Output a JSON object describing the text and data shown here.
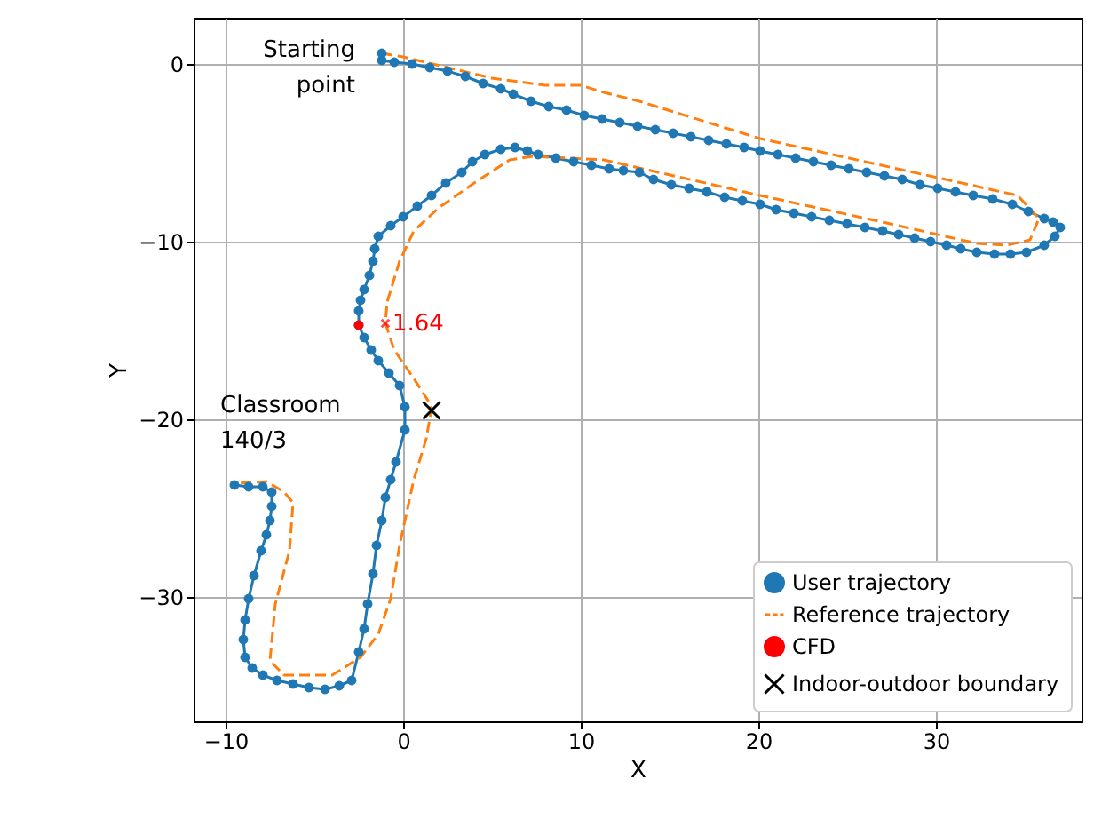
{
  "chart_data": {
    "type": "line",
    "xlabel": "X",
    "ylabel": "Y",
    "xlim": [
      -11.8,
      38.2
    ],
    "ylim": [
      -37,
      2.6
    ],
    "xticks": [
      -10,
      0,
      10,
      20,
      30
    ],
    "yticks": [
      -30,
      -20,
      -10,
      0
    ],
    "grid": true,
    "legend": "bottom right",
    "annotations": [
      "Starting point",
      "Classroom 140/3",
      {
        "text": "1.64",
        "x": -1,
        "y": -14.6
      }
    ],
    "series": [
      {
        "name": "User trajectory",
        "marker": "circle",
        "line_style": "solid",
        "color": "#1f77b4",
        "x": [
          -1.2,
          -1.2,
          -0.5,
          0.5,
          1.5,
          2.5,
          3.5,
          4.5,
          5.5,
          6.2,
          7.2,
          8.2,
          9.2,
          10.2,
          11.2,
          12.2,
          13.2,
          14.2,
          15.2,
          16.2,
          17.2,
          18.2,
          19.2,
          20.1,
          21.1,
          22.1,
          23.1,
          24.1,
          25.1,
          26.1,
          27.1,
          28.1,
          29.1,
          30.1,
          31.1,
          32.1,
          33.2,
          34.3,
          35.2,
          36.1,
          36.6,
          37,
          36.7,
          36.1,
          35.1,
          34.2,
          33.3,
          32.3,
          31.4,
          30.6,
          29.7,
          28.8,
          27.9,
          27,
          26,
          25,
          24,
          23,
          22,
          21,
          20.1,
          19.1,
          18.1,
          17.1,
          16.1,
          15.1,
          14.1,
          13.3,
          12.4,
          11.6,
          10.6,
          9.6,
          8.6,
          7.6,
          7,
          6.3,
          5.5,
          4.6,
          3.9,
          3.3,
          2.4,
          1.6,
          0.8,
          0,
          -0.7,
          -1.4,
          -1.6,
          -1.7,
          -1.9,
          -2.2,
          -2.4,
          -2.5,
          -2.5,
          -2.2,
          -1.8,
          -1.4,
          -0.8,
          -0.2,
          0.1,
          0.1,
          -0.4,
          -0.7,
          -1,
          -1.2,
          -1.5,
          -1.7,
          -2,
          -2.2,
          -2.5,
          -2.9,
          -3.6,
          -4.4,
          -5.3,
          -6.2,
          -7.1,
          -7.9,
          -8.5,
          -8.9,
          -9,
          -8.9,
          -8.7,
          -8.4,
          -8,
          -7.7,
          -7.5,
          -7.4,
          -7.4,
          -7.9,
          -8.7,
          -9.5
        ],
        "values": [
          0.6,
          0.2,
          0.1,
          0,
          -0.2,
          -0.4,
          -0.7,
          -1.1,
          -1.4,
          -1.7,
          -2.1,
          -2.4,
          -2.6,
          -2.9,
          -3.1,
          -3.3,
          -3.5,
          -3.7,
          -3.9,
          -4.1,
          -4.3,
          -4.5,
          -4.7,
          -4.9,
          -5.1,
          -5.3,
          -5.5,
          -5.7,
          -5.9,
          -6.1,
          -6.3,
          -6.5,
          -6.8,
          -7,
          -7.2,
          -7.4,
          -7.6,
          -7.9,
          -8.3,
          -8.7,
          -8.9,
          -9.2,
          -9.7,
          -10.2,
          -10.6,
          -10.7,
          -10.7,
          -10.6,
          -10.4,
          -10.2,
          -10,
          -9.8,
          -9.6,
          -9.4,
          -9.2,
          -9,
          -8.8,
          -8.6,
          -8.4,
          -8.2,
          -7.9,
          -7.7,
          -7.5,
          -7.2,
          -7,
          -6.8,
          -6.5,
          -6.1,
          -6,
          -5.9,
          -5.7,
          -5.5,
          -5.3,
          -5.1,
          -4.9,
          -4.7,
          -4.8,
          -5.1,
          -5.5,
          -6.1,
          -6.7,
          -7.4,
          -8,
          -8.6,
          -9.1,
          -9.7,
          -10.4,
          -11.1,
          -11.9,
          -12.7,
          -13.3,
          -13.9,
          -14.7,
          -15.4,
          -16.1,
          -16.7,
          -17.4,
          -18.1,
          -19.3,
          -20.6,
          -22.4,
          -23.4,
          -24.4,
          -25.7,
          -27.1,
          -28.7,
          -30.4,
          -31.8,
          -33.1,
          -34.7,
          -35,
          -35.2,
          -35.1,
          -34.9,
          -34.7,
          -34.4,
          -34,
          -33.4,
          -32.4,
          -31.3,
          -30.1,
          -28.8,
          -27.4,
          -26.5,
          -25.7,
          -24.9,
          -24.1,
          -23.8,
          -23.8,
          -23.7
        ]
      },
      {
        "name": "Reference trajectory",
        "marker": "none",
        "line_style": "dashed",
        "color": "#ff7f0e",
        "x": [
          -1.2,
          0,
          2.5,
          5,
          8,
          10,
          11.3,
          13.3,
          20.1,
          30.1,
          34.6,
          35.8,
          35.3,
          34,
          32.3,
          27,
          20.1,
          11.3,
          7.3,
          6,
          4,
          2,
          0.6,
          -0.2,
          -0.9,
          -1,
          -0.5,
          0.6,
          1.5,
          1.6,
          1.3,
          0.6,
          -0.2,
          -0.7,
          -1.4,
          -2.4,
          -4,
          -6.7,
          -7.5,
          -7.2,
          -6.4,
          -6.2,
          -6.7,
          -7.7,
          -9.4
        ],
        "values": [
          0.6,
          0.4,
          -0.2,
          -0.8,
          -1.2,
          -1.2,
          -1.6,
          -2.1,
          -4.2,
          -6.4,
          -7.4,
          -8.7,
          -9.9,
          -10.2,
          -10.1,
          -8.9,
          -7.4,
          -5.4,
          -5.2,
          -5.4,
          -6.7,
          -8.1,
          -9.4,
          -11.1,
          -13.4,
          -14.6,
          -16.1,
          -17.7,
          -19.1,
          -19.4,
          -21.1,
          -23.4,
          -27.1,
          -30.1,
          -32.1,
          -33.4,
          -34.4,
          -34.4,
          -33.6,
          -30.4,
          -27.4,
          -24.7,
          -24.1,
          -23.5,
          -23.6
        ]
      },
      {
        "name": "CFD",
        "type": "scatter",
        "marker": "circle",
        "color": "#ff0000",
        "x": [
          -2.5
        ],
        "values": [
          -14.7
        ]
      },
      {
        "name": "Indoor-outdoor boundary",
        "type": "scatter",
        "marker": "cross",
        "color": "#000000",
        "x": [
          1.6
        ],
        "values": [
          -19.5
        ]
      }
    ]
  }
}
